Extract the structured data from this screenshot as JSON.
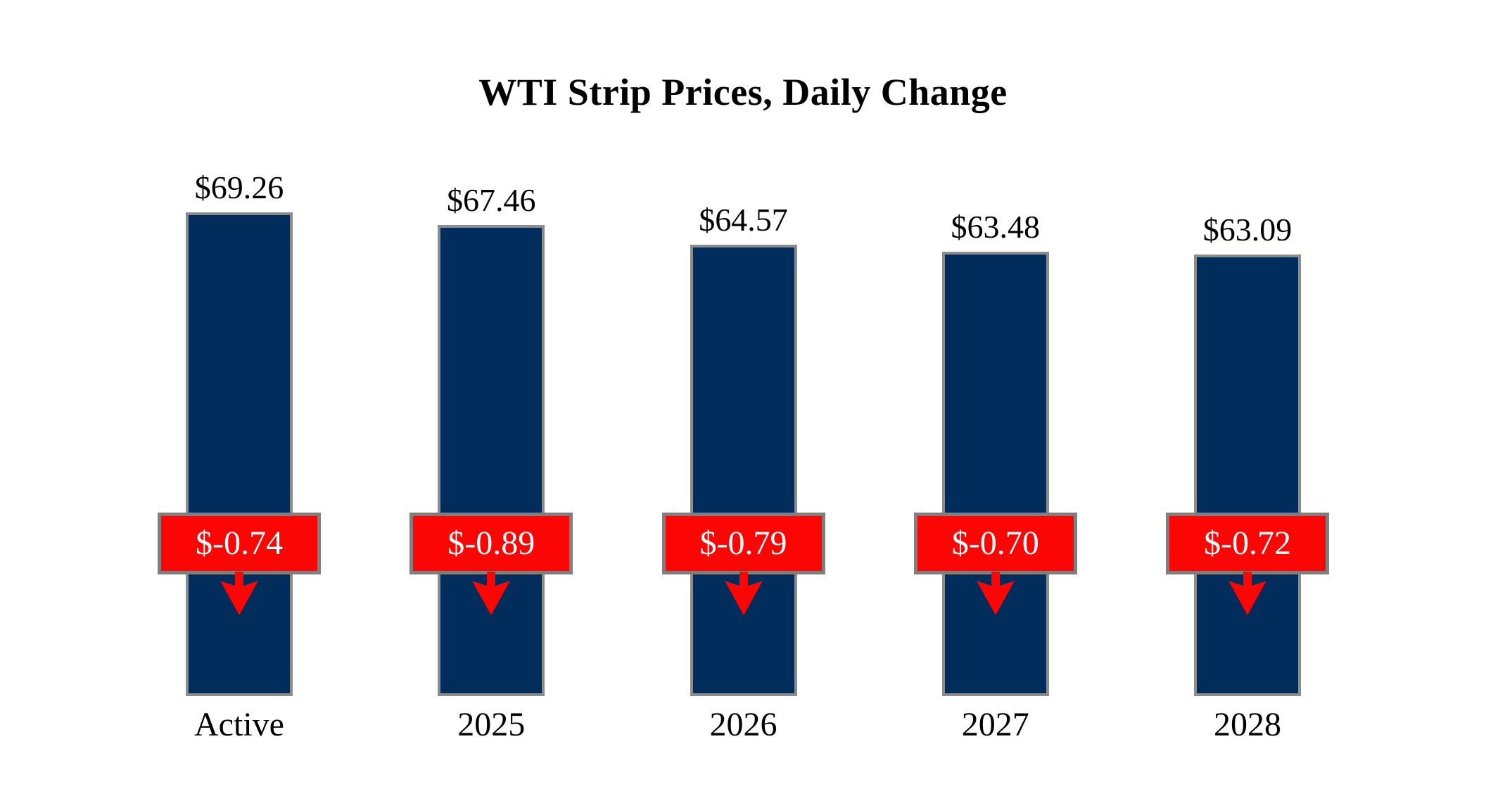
{
  "title": "WTI Strip Prices, Daily Change",
  "chart_data": {
    "type": "bar",
    "title": "WTI Strip Prices, Daily Change",
    "categories": [
      "Active",
      "2025",
      "2026",
      "2027",
      "2028"
    ],
    "series": [
      {
        "name": "WTI Strip Price",
        "values": [
          69.26,
          67.46,
          64.57,
          63.48,
          63.09
        ]
      },
      {
        "name": "Daily Change",
        "values": [
          -0.74,
          -0.89,
          -0.79,
          -0.7,
          -0.72
        ]
      }
    ],
    "price_labels": [
      "$69.26",
      "$67.46",
      "$64.57",
      "$63.48",
      "$63.09"
    ],
    "change_labels": [
      "$-0.74",
      "$-0.89",
      "$-0.79",
      "$-0.70",
      "$-0.72"
    ],
    "xlabel": "",
    "ylabel": "",
    "ylim": [
      -1.4,
      70
    ],
    "grid": false,
    "legend": "none"
  },
  "colors": {
    "background": "#FFFFFF",
    "bar_fill": "#002D5C",
    "bar_border": "#8C8C8C",
    "change_fill": "#FB0505",
    "change_border": "#7F7F7F",
    "change_text": "#FFFFFF",
    "arrow": "#FB0505",
    "text": "#000000"
  }
}
